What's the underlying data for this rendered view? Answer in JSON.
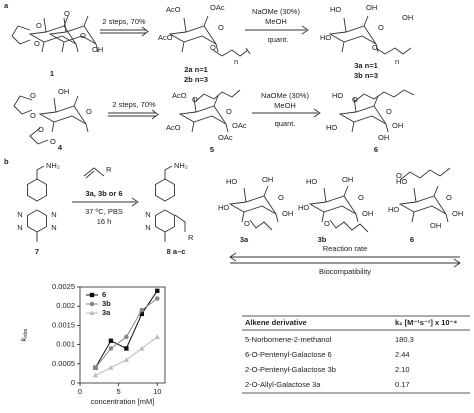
{
  "scheme_a": {
    "label": "a",
    "c1": {
      "number": "1",
      "atoms": [
        "O",
        "O",
        "O",
        "O",
        "OH"
      ]
    },
    "step1": {
      "conditions": "2 steps, 70%"
    },
    "c2": {
      "atoms": [
        "AcO",
        "OAc",
        "AcO",
        "O",
        "O",
        "n"
      ],
      "numbers": [
        "2a n=1",
        "2b n=3"
      ]
    },
    "step2": {
      "conditions": [
        "NaOMe (30%)",
        "MeOH",
        "quant."
      ]
    },
    "c3": {
      "atoms": [
        "HO",
        "OH",
        "HO",
        "O",
        "OH",
        "O",
        "n"
      ],
      "numbers": [
        "3a n=1",
        "3b n=3"
      ]
    },
    "c4": {
      "number": "4",
      "atoms": [
        "O",
        "OH",
        "O",
        "O",
        "O",
        "O"
      ]
    },
    "step3": {
      "conditions": "2 steps, 70%"
    },
    "c5": {
      "number": "5",
      "atoms": [
        "AcO",
        "O",
        "O",
        "OAc",
        "OAc",
        "AcO"
      ]
    },
    "step4": {
      "conditions": [
        "NaOMe (30%)",
        "MeOH",
        "quant."
      ]
    },
    "c6": {
      "number": "6",
      "atoms": [
        "HO",
        "O",
        "O",
        "OH",
        "OH",
        "HO"
      ]
    }
  },
  "scheme_b": {
    "label": "b",
    "c7": {
      "number": "7",
      "atoms": [
        "NH₂",
        "N",
        "N",
        "N",
        "N"
      ]
    },
    "reagent": {
      "atoms": [
        "R"
      ],
      "names": "3a, 3b or 6",
      "conditions": [
        "37 ºC, PBS",
        "16 h"
      ]
    },
    "c8": {
      "number": "8 a–c",
      "atoms": [
        "NH₂",
        "N",
        "N",
        "R"
      ]
    },
    "sugars": [
      {
        "number": "3a",
        "atoms": [
          "HO",
          "OH",
          "HO",
          "O",
          "OH",
          "O"
        ]
      },
      {
        "number": "3b",
        "atoms": [
          "HO",
          "OH",
          "HO",
          "O",
          "OH",
          "O"
        ]
      },
      {
        "number": "6",
        "atoms": [
          "HO",
          "O",
          "O",
          "OH",
          "OH",
          "HO"
        ]
      }
    ],
    "trend": [
      "Reaction rate",
      "Biocompatibility"
    ]
  },
  "chart_data": {
    "type": "line",
    "xlabel": "concentration [mM]",
    "ylabel": {
      "text": "k",
      "subscript": "obs"
    },
    "x": [
      2,
      4,
      6,
      8,
      10
    ],
    "series": [
      {
        "name": "6",
        "color": "#111111",
        "marker": "square",
        "values": [
          0.0004,
          0.0011,
          0.0009,
          0.0018,
          0.0024
        ]
      },
      {
        "name": "3b",
        "color": "#888888",
        "marker": "circle",
        "values": [
          0.0004,
          0.0009,
          0.0012,
          0.0019,
          0.0022
        ]
      },
      {
        "name": "3a",
        "color": "#bbbbbb",
        "marker": "triangle",
        "values": [
          0.0002,
          0.0004,
          0.0006,
          0.0009,
          0.0012
        ]
      }
    ],
    "xlim": [
      0,
      11
    ],
    "ylim": [
      0,
      0.0025
    ],
    "xticks": [
      0,
      5,
      10
    ],
    "yticks": [
      0,
      0.0005,
      0.001,
      0.0015,
      0.002,
      0.0025
    ],
    "legend": "upper-left"
  },
  "table": {
    "header": [
      "Alkene derivative",
      "k₂ [M⁻¹s⁻¹] x 10⁻⁴"
    ],
    "rows": [
      [
        "5-Norbornene-2-methanol",
        "180.3"
      ],
      [
        "6-O-Pentenyl-Galactose 6",
        "2.44"
      ],
      [
        "2-O-Pentenyl-Galactose 3b",
        "2.10"
      ],
      [
        "2-O-Allyl-Galactose 3a",
        "0.17"
      ]
    ]
  }
}
